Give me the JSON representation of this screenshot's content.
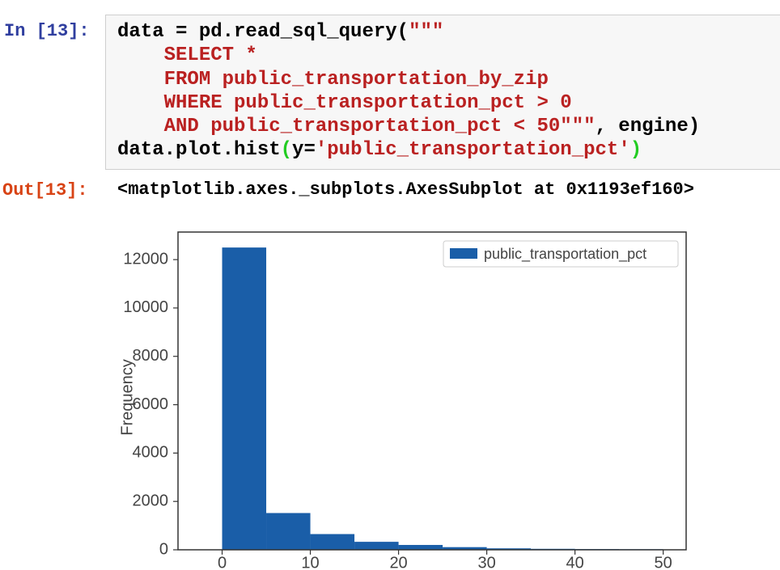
{
  "cell": {
    "in_prompt": "In [13]:",
    "code": [
      [
        {
          "text": "data = pd.read_sql_query(",
          "color": "#000000"
        },
        {
          "text": "\"\"\"",
          "color": "#ba2121"
        }
      ],
      [
        {
          "text": "    SELECT *",
          "color": "#ba2121"
        }
      ],
      [
        {
          "text": "    FROM public_transportation_by_zip",
          "color": "#ba2121"
        }
      ],
      [
        {
          "text": "    WHERE public_transportation_pct > 0",
          "color": "#ba2121"
        }
      ],
      [
        {
          "text": "    AND public_transportation_pct < 50\"\"\"",
          "color": "#ba2121"
        },
        {
          "text": ", engine)",
          "color": "#000000"
        }
      ],
      [
        {
          "text": "data.plot.hist",
          "color": "#000000"
        },
        {
          "text": "(",
          "color": "#22cc22"
        },
        {
          "text": "y=",
          "color": "#000000"
        },
        {
          "text": "'public_transportation_pct'",
          "color": "#ba2121"
        },
        {
          "text": ")",
          "color": "#22cc22"
        }
      ]
    ],
    "out_prompt": "Out[13]:",
    "output": "<matplotlib.axes._subplots.AxesSubplot at 0x1193ef160>"
  },
  "chart_data": {
    "type": "histogram",
    "bins": [
      0,
      5,
      10,
      15,
      20,
      25,
      30,
      35,
      40,
      45,
      50
    ],
    "series": [
      {
        "name": "public_transportation_pct",
        "color": "#1a5ea8",
        "values": [
          12500,
          1520,
          650,
          330,
          200,
          110,
          60,
          40,
          30,
          25
        ]
      }
    ],
    "ylabel": "Frequency",
    "xlim": [
      -5,
      52.6
    ],
    "ylim": [
      0,
      13140
    ],
    "xticks": [
      0,
      10,
      20,
      30,
      40,
      50
    ],
    "yticks": [
      0,
      2000,
      4000,
      6000,
      8000,
      10000,
      12000
    ],
    "legend": "upper right"
  }
}
